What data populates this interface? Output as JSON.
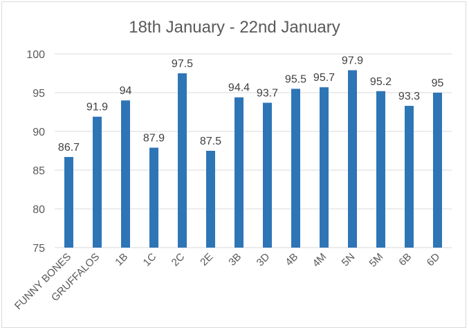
{
  "chart_data": {
    "type": "bar",
    "title": "18th January - 22nd January",
    "xlabel": "",
    "ylabel": "",
    "categories": [
      "FUNNY BONES",
      "GRUFFALOS",
      "1B",
      "1C",
      "2C",
      "2E",
      "3B",
      "3D",
      "4B",
      "4M",
      "5N",
      "5M",
      "6B",
      "6D"
    ],
    "values": [
      86.7,
      91.9,
      94,
      87.9,
      97.5,
      87.5,
      94.4,
      93.7,
      95.5,
      95.7,
      97.9,
      95.2,
      93.3,
      95
    ],
    "value_labels": [
      "86.7",
      "91.9",
      "94",
      "87.9",
      "97.5",
      "87.5",
      "94.4",
      "93.7",
      "95.5",
      "95.7",
      "97.9",
      "95.2",
      "93.3",
      "95"
    ],
    "ylim": [
      75,
      100
    ],
    "yticks": [
      75,
      80,
      85,
      90,
      95,
      100
    ],
    "grid": true,
    "legend": "none",
    "colors": {
      "bar": "#2e75b6",
      "grid": "#d9d9d9",
      "text": "#595959",
      "label": "#404040"
    }
  }
}
